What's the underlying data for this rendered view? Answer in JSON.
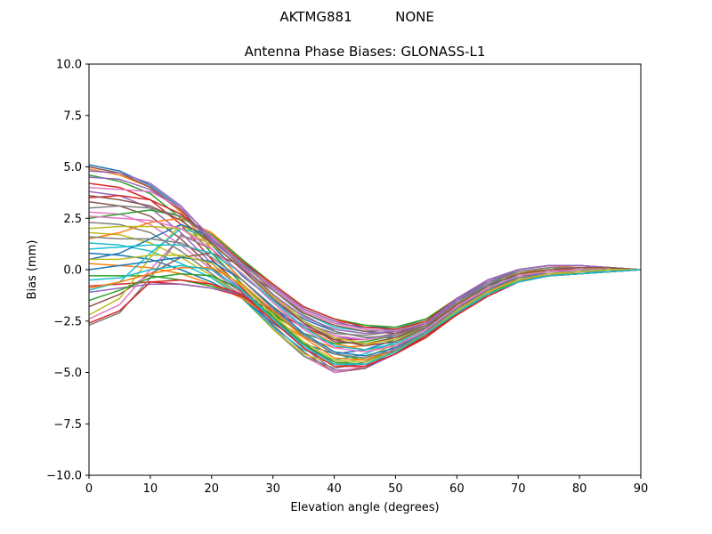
{
  "chart_data": {
    "type": "line",
    "suptitle_left": "AKTMG881",
    "suptitle_right": "NONE",
    "title": "Antenna Phase Biases: GLONASS-L1",
    "xlabel": "Elevation angle (degrees)",
    "ylabel": "Bias (mm)",
    "xlim": [
      0,
      90
    ],
    "ylim": [
      -10,
      10
    ],
    "xticks": [
      0,
      10,
      20,
      30,
      40,
      50,
      60,
      70,
      80,
      90
    ],
    "yticks": [
      -10.0,
      -7.5,
      -5.0,
      -2.5,
      0.0,
      2.5,
      5.0,
      7.5,
      10.0
    ],
    "xtick_labels": [
      "0",
      "10",
      "20",
      "30",
      "40",
      "50",
      "60",
      "70",
      "80",
      "90"
    ],
    "ytick_labels": [
      "−10.0",
      "−7.5",
      "−5.0",
      "−2.5",
      "0.0",
      "2.5",
      "5.0",
      "7.5",
      "10.0"
    ],
    "grid": false,
    "legend": "none",
    "colors": [
      "#1f77b4",
      "#ff7f0e",
      "#2ca02c",
      "#d62728",
      "#9467bd",
      "#8c564b",
      "#e377c2",
      "#7f7f7f",
      "#bcbd22",
      "#17becf"
    ],
    "x": [
      0,
      5,
      10,
      15,
      20,
      25,
      30,
      35,
      40,
      45,
      50,
      55,
      60,
      65,
      70,
      75,
      80,
      85,
      90
    ],
    "series": [
      {
        "values": [
          5.1,
          4.8,
          4.1,
          3.0,
          1.2,
          -0.3,
          -1.5,
          -2.4,
          -3.0,
          -3.3,
          -3.3,
          -2.9,
          -1.6,
          -0.8,
          0.0,
          0.2,
          0.2,
          0.1,
          0.0
        ]
      },
      {
        "values": [
          4.9,
          4.6,
          4.0,
          2.8,
          1.0,
          -0.5,
          -1.8,
          -2.8,
          -3.6,
          -3.9,
          -3.7,
          -3.1,
          -1.9,
          -1.0,
          -0.2,
          0.1,
          0.2,
          0.1,
          0.0
        ]
      },
      {
        "values": [
          4.6,
          4.3,
          3.7,
          2.5,
          0.8,
          -0.7,
          -2.1,
          -3.2,
          -4.1,
          -4.4,
          -4.0,
          -3.3,
          -2.1,
          -1.1,
          -0.3,
          0.0,
          0.1,
          0.1,
          0.0
        ]
      },
      {
        "values": [
          4.2,
          4.0,
          3.4,
          2.2,
          0.5,
          -0.9,
          -2.4,
          -3.6,
          -4.6,
          -4.7,
          -4.1,
          -3.3,
          -2.2,
          -1.2,
          -0.4,
          -0.1,
          0.1,
          0.1,
          0.0
        ]
      },
      {
        "values": [
          3.8,
          3.6,
          3.0,
          1.8,
          0.3,
          -1.0,
          -2.5,
          -3.8,
          -4.9,
          -4.8,
          -4.1,
          -3.2,
          -2.2,
          -1.2,
          -0.5,
          -0.2,
          0.0,
          0.1,
          0.0
        ]
      },
      {
        "values": [
          3.3,
          3.1,
          2.6,
          1.5,
          0.1,
          -1.1,
          -2.7,
          -4.0,
          -5.0,
          -4.8,
          -3.9,
          -3.1,
          -2.2,
          -1.3,
          -0.6,
          -0.3,
          -0.1,
          0.0,
          0.0
        ]
      },
      {
        "values": [
          2.8,
          2.7,
          2.2,
          1.2,
          0.0,
          -1.2,
          -2.8,
          -4.2,
          -5.0,
          -4.7,
          -3.8,
          -3.0,
          -2.2,
          -1.3,
          -0.6,
          -0.3,
          -0.2,
          -0.1,
          0.0
        ]
      },
      {
        "values": [
          2.3,
          2.2,
          1.8,
          0.9,
          -0.2,
          -1.3,
          -2.9,
          -4.2,
          -4.8,
          -4.5,
          -3.7,
          -2.9,
          -2.1,
          -1.3,
          -0.6,
          -0.3,
          -0.2,
          -0.1,
          0.0
        ]
      },
      {
        "values": [
          1.8,
          1.7,
          1.3,
          0.6,
          -0.3,
          -1.4,
          -2.9,
          -4.1,
          -4.6,
          -4.3,
          -3.6,
          -2.8,
          -2.0,
          -1.2,
          -0.6,
          -0.3,
          -0.2,
          -0.1,
          0.0
        ]
      },
      {
        "values": [
          1.3,
          1.2,
          0.9,
          0.3,
          -0.4,
          -1.4,
          -2.8,
          -3.9,
          -4.4,
          -4.1,
          -3.5,
          -2.8,
          -2.0,
          -1.2,
          -0.6,
          -0.3,
          -0.2,
          -0.1,
          0.0
        ]
      },
      {
        "values": [
          0.8,
          0.7,
          0.5,
          0.0,
          -0.6,
          -1.4,
          -2.6,
          -3.6,
          -4.1,
          -3.9,
          -3.4,
          -2.7,
          -1.9,
          -1.1,
          -0.5,
          -0.3,
          -0.2,
          -0.1,
          0.0
        ]
      },
      {
        "values": [
          0.3,
          0.2,
          0.1,
          -0.2,
          -0.7,
          -1.4,
          -2.4,
          -3.3,
          -3.8,
          -3.7,
          -3.3,
          -2.7,
          -1.9,
          -1.1,
          -0.5,
          -0.3,
          -0.2,
          -0.1,
          0.0
        ]
      },
      {
        "values": [
          -0.3,
          -0.3,
          -0.3,
          -0.5,
          -0.8,
          -1.3,
          -2.2,
          -3.1,
          -3.6,
          -3.5,
          -3.2,
          -2.6,
          -1.8,
          -1.0,
          -0.5,
          -0.3,
          -0.2,
          -0.1,
          0.0
        ]
      },
      {
        "values": [
          -0.8,
          -0.7,
          -0.6,
          -0.7,
          -0.9,
          -1.3,
          -2.0,
          -2.8,
          -3.4,
          -3.4,
          -3.1,
          -2.6,
          -1.8,
          -1.0,
          -0.5,
          -0.3,
          -0.2,
          -0.1,
          0.0
        ]
      },
      {
        "values": [
          -1.1,
          -0.9,
          -0.7,
          -0.7,
          -0.9,
          -1.2,
          -1.9,
          -2.7,
          -3.3,
          -3.4,
          -3.1,
          -2.6,
          -1.8,
          -1.0,
          -0.5,
          -0.3,
          -0.2,
          -0.1,
          0.0
        ]
      },
      {
        "values": [
          -1.8,
          -1.2,
          -0.2,
          0.6,
          0.8,
          0.2,
          -1.2,
          -2.6,
          -3.5,
          -3.6,
          -3.3,
          -2.7,
          -1.8,
          -1.0,
          -0.5,
          -0.3,
          -0.2,
          -0.1,
          0.0
        ]
      },
      {
        "values": [
          -2.4,
          -1.7,
          0.0,
          1.6,
          1.4,
          0.2,
          -1.3,
          -2.5,
          -3.2,
          -3.4,
          -3.2,
          -2.6,
          -1.7,
          -1.0,
          -0.5,
          -0.3,
          -0.2,
          -0.1,
          0.0
        ]
      },
      {
        "values": [
          -2.7,
          -2.1,
          -0.4,
          1.7,
          1.0,
          -0.2,
          -1.5,
          -2.6,
          -3.1,
          -3.2,
          -3.0,
          -2.5,
          -1.6,
          -0.9,
          -0.5,
          -0.3,
          -0.2,
          -0.1,
          0.0
        ]
      },
      {
        "values": [
          -2.2,
          -1.4,
          0.6,
          2.2,
          1.3,
          0.0,
          -1.3,
          -2.3,
          -2.9,
          -3.1,
          -3.0,
          -2.5,
          -1.6,
          -0.9,
          -0.4,
          -0.2,
          -0.2,
          -0.1,
          0.0
        ]
      },
      {
        "values": [
          -1.0,
          -0.6,
          0.8,
          2.0,
          1.6,
          0.4,
          -1.0,
          -2.1,
          -2.8,
          -3.0,
          -2.9,
          -2.4,
          -1.5,
          -0.8,
          -0.4,
          -0.2,
          -0.1,
          -0.1,
          0.0
        ]
      },
      {
        "values": [
          0.5,
          0.8,
          1.5,
          2.2,
          1.6,
          0.4,
          -0.9,
          -2.0,
          -2.6,
          -2.8,
          -2.8,
          -2.4,
          -1.5,
          -0.7,
          -0.3,
          -0.2,
          -0.1,
          0.0,
          0.0
        ]
      },
      {
        "values": [
          1.5,
          1.8,
          2.3,
          2.5,
          1.8,
          0.5,
          -0.8,
          -1.9,
          -2.5,
          -2.7,
          -2.8,
          -2.4,
          -1.4,
          -0.6,
          -0.2,
          -0.1,
          0.0,
          0.0,
          0.0
        ]
      },
      {
        "values": [
          2.5,
          2.7,
          2.9,
          2.6,
          1.7,
          0.5,
          -0.7,
          -1.8,
          -2.4,
          -2.7,
          -2.8,
          -2.4,
          -1.4,
          -0.6,
          -0.1,
          0.1,
          0.1,
          0.1,
          0.0
        ]
      },
      {
        "values": [
          3.5,
          3.6,
          3.4,
          2.7,
          1.6,
          0.4,
          -0.7,
          -1.8,
          -2.4,
          -2.8,
          -2.9,
          -2.5,
          -1.4,
          -0.5,
          0.0,
          0.2,
          0.2,
          0.1,
          0.0
        ]
      },
      {
        "values": [
          4.5,
          4.4,
          3.9,
          2.9,
          1.4,
          0.2,
          -0.8,
          -1.9,
          -2.5,
          -2.9,
          -3.0,
          -2.6,
          -1.4,
          -0.5,
          0.0,
          0.2,
          0.2,
          0.1,
          0.0
        ]
      },
      {
        "values": [
          5.0,
          4.7,
          4.0,
          2.9,
          1.3,
          0.0,
          -1.0,
          -2.1,
          -2.7,
          -3.0,
          -3.1,
          -2.7,
          -1.5,
          -0.6,
          0.0,
          0.2,
          0.2,
          0.1,
          0.0
        ]
      },
      {
        "values": [
          4.0,
          3.9,
          3.8,
          3.0,
          1.6,
          0.3,
          -0.9,
          -2.0,
          -2.6,
          -2.9,
          -3.0,
          -2.6,
          -1.5,
          -0.6,
          0.0,
          0.2,
          0.2,
          0.1,
          0.0
        ]
      },
      {
        "values": [
          3.0,
          3.1,
          3.0,
          2.6,
          1.5,
          0.3,
          -1.0,
          -2.2,
          -3.0,
          -3.3,
          -3.2,
          -2.7,
          -1.6,
          -0.7,
          -0.1,
          0.1,
          0.1,
          0.1,
          0.0
        ]
      },
      {
        "values": [
          2.0,
          2.1,
          2.1,
          2.0,
          1.2,
          0.1,
          -1.2,
          -2.5,
          -3.3,
          -3.6,
          -3.4,
          -2.8,
          -1.7,
          -0.8,
          -0.2,
          0.0,
          0.1,
          0.0,
          0.0
        ]
      },
      {
        "values": [
          1.0,
          1.1,
          1.2,
          1.2,
          0.8,
          -0.2,
          -1.5,
          -2.8,
          -3.7,
          -3.9,
          -3.6,
          -2.9,
          -1.8,
          -0.9,
          -0.3,
          -0.1,
          0.0,
          0.0,
          0.0
        ]
      },
      {
        "values": [
          0.0,
          0.2,
          0.4,
          0.6,
          0.4,
          -0.5,
          -1.8,
          -3.1,
          -4.0,
          -4.2,
          -3.8,
          -3.0,
          -1.9,
          -1.0,
          -0.3,
          -0.1,
          0.0,
          0.0,
          0.0
        ]
      },
      {
        "values": [
          -0.9,
          -0.6,
          -0.2,
          0.1,
          0.1,
          -0.7,
          -2.0,
          -3.3,
          -4.3,
          -4.4,
          -3.9,
          -3.1,
          -2.0,
          -1.1,
          -0.4,
          -0.2,
          -0.1,
          0.0,
          0.0
        ]
      },
      {
        "values": [
          -1.5,
          -1.0,
          -0.4,
          -0.2,
          -0.3,
          -1.0,
          -2.3,
          -3.6,
          -4.5,
          -4.6,
          -4.0,
          -3.2,
          -2.1,
          -1.2,
          -0.5,
          -0.2,
          -0.1,
          0.0,
          0.0
        ]
      },
      {
        "values": [
          -2.6,
          -2.0,
          -0.6,
          -0.5,
          -0.7,
          -1.2,
          -2.5,
          -3.8,
          -4.7,
          -4.7,
          -4.1,
          -3.2,
          -2.2,
          -1.3,
          -0.6,
          -0.3,
          -0.2,
          -0.1,
          0.0
        ]
      },
      {
        "values": [
          4.8,
          4.7,
          4.2,
          3.1,
          1.5,
          0.1,
          -1.2,
          -2.3,
          -2.9,
          -3.1,
          -3.0,
          -2.6,
          -1.5,
          -0.6,
          0.0,
          0.2,
          0.2,
          0.1,
          0.0
        ]
      },
      {
        "values": [
          3.6,
          3.4,
          3.1,
          2.4,
          1.3,
          0.0,
          -1.4,
          -2.6,
          -3.4,
          -3.7,
          -3.5,
          -2.8,
          -1.7,
          -0.8,
          -0.2,
          0.0,
          0.1,
          0.1,
          0.0
        ]
      },
      {
        "values": [
          2.6,
          2.5,
          2.4,
          2.0,
          1.0,
          -0.2,
          -1.6,
          -2.9,
          -3.8,
          -4.0,
          -3.7,
          -2.9,
          -1.8,
          -0.9,
          -0.3,
          -0.1,
          0.0,
          0.0,
          0.0
        ]
      },
      {
        "values": [
          1.6,
          1.5,
          1.5,
          1.3,
          0.6,
          -0.5,
          -1.9,
          -3.2,
          -4.1,
          -4.3,
          -3.9,
          -3.0,
          -1.9,
          -1.0,
          -0.4,
          -0.2,
          -0.1,
          0.0,
          0.0
        ]
      },
      {
        "values": [
          0.5,
          0.5,
          0.7,
          0.7,
          0.3,
          -0.8,
          -2.2,
          -3.5,
          -4.4,
          -4.5,
          -4.0,
          -3.1,
          -2.0,
          -1.1,
          -0.5,
          -0.2,
          -0.1,
          0.0,
          0.0
        ]
      },
      {
        "values": [
          -0.5,
          -0.4,
          0.0,
          0.2,
          0.0,
          -1.0,
          -2.4,
          -3.7,
          -4.6,
          -4.6,
          -4.0,
          -3.1,
          -2.1,
          -1.2,
          -0.6,
          -0.3,
          -0.2,
          -0.1,
          0.0
        ]
      }
    ]
  }
}
